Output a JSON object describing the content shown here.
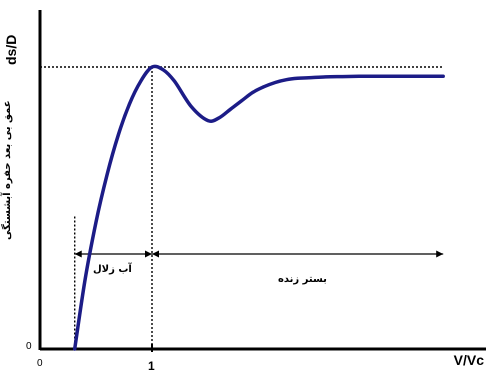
{
  "chart_data": {
    "type": "line",
    "ylabel": "ds/D",
    "ylabel_sub": "عمق بی بعد حفره آبشستگی",
    "xlabel": "V/Vc",
    "x_ticks": [
      "0",
      "1"
    ],
    "y_ticks": [
      "0"
    ],
    "series": [
      {
        "color": "#1c1c87",
        "x": [
          0.31,
          0.4,
          0.5,
          0.6,
          0.7,
          0.8,
          0.9,
          1.0,
          1.1,
          1.2,
          1.35,
          1.5,
          1.6,
          1.7,
          1.8,
          1.9,
          2.0,
          2.1,
          2.2,
          2.3,
          2.4,
          2.55,
          2.7,
          2.85,
          3.0,
          3.15,
          3.3,
          3.45,
          3.6
        ],
        "y": [
          0.0,
          0.24,
          0.45,
          0.62,
          0.76,
          0.87,
          0.95,
          1.0,
          0.99,
          0.95,
          0.86,
          0.81,
          0.82,
          0.85,
          0.88,
          0.91,
          0.93,
          0.945,
          0.955,
          0.96,
          0.962,
          0.965,
          0.966,
          0.967,
          0.967,
          0.967,
          0.967,
          0.967,
          0.967
        ]
      }
    ],
    "reference_line_y": 1.0,
    "reference_line_x": [
      0.31,
      1.0
    ],
    "regions": [
      {
        "label": "آب زلال",
        "from": 0.31,
        "to": 1.0
      },
      {
        "label": "بستر زنده",
        "from": 1.0,
        "to": 3.6
      }
    ],
    "xlim": [
      0,
      3.6
    ],
    "ylim": [
      0,
      1.22
    ]
  }
}
